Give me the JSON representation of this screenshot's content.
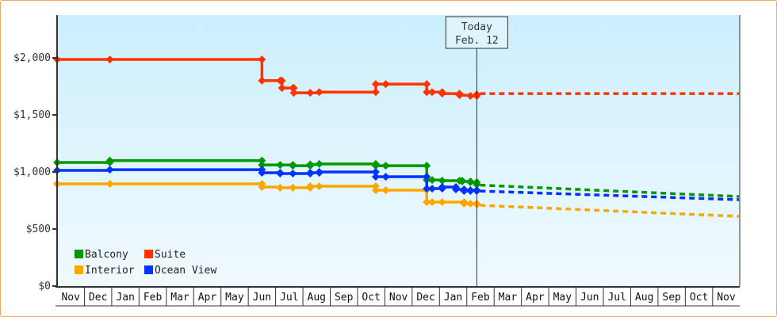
{
  "chart_data": {
    "type": "line",
    "title": "",
    "xlabel": "",
    "ylabel": "",
    "ylim": [
      0,
      2375
    ],
    "y_ticks": [
      "$0",
      "$500",
      "$1,000",
      "$1,500",
      "$2,000"
    ],
    "y_tick_values": [
      0,
      500,
      1000,
      1500,
      2000
    ],
    "x_ticks": [
      "Nov",
      "Dec",
      "Jan",
      "Feb",
      "Mar",
      "Apr",
      "May",
      "Jun",
      "Jul",
      "Aug",
      "Sep",
      "Oct",
      "Nov",
      "Dec",
      "Jan",
      "Feb",
      "Mar",
      "Apr",
      "May",
      "Jun",
      "Jul",
      "Aug",
      "Sep",
      "Oct",
      "Nov"
    ],
    "point_format": "[month tick index, day of month, price in $]",
    "today": {
      "label_line1": "Today",
      "label_line2": "Feb. 12",
      "month_index": 15,
      "day": 12
    },
    "legend_placement": "bottom-left",
    "series": [
      {
        "name": "Balcony",
        "color": "#009900",
        "points": [
          [
            0,
            1,
            1083
          ],
          [
            1,
            29,
            1100
          ],
          [
            7,
            16,
            1062
          ],
          [
            8,
            6,
            1062
          ],
          [
            8,
            20,
            1055
          ],
          [
            9,
            9,
            1066
          ],
          [
            9,
            19,
            1070
          ],
          [
            11,
            21,
            1055
          ],
          [
            12,
            2,
            1055
          ],
          [
            13,
            17,
            930
          ],
          [
            13,
            23,
            930
          ],
          [
            14,
            4,
            924
          ],
          [
            14,
            23,
            924
          ],
          [
            14,
            26,
            917
          ],
          [
            15,
            5,
            910
          ],
          [
            15,
            12,
            890
          ]
        ],
        "projection": [
          [
            15,
            12,
            885
          ],
          [
            24,
            30,
            785
          ]
        ]
      },
      {
        "name": "Suite",
        "color": "#ff3300",
        "points": [
          [
            0,
            1,
            1986
          ],
          [
            1,
            29,
            1986
          ],
          [
            7,
            16,
            1800
          ],
          [
            8,
            6,
            1800
          ],
          [
            8,
            8,
            1736
          ],
          [
            8,
            20,
            1736
          ],
          [
            8,
            21,
            1694
          ],
          [
            9,
            9,
            1694
          ],
          [
            9,
            19,
            1700
          ],
          [
            11,
            21,
            1770
          ],
          [
            12,
            2,
            1770
          ],
          [
            13,
            17,
            1700
          ],
          [
            13,
            23,
            1700
          ],
          [
            14,
            4,
            1687
          ],
          [
            14,
            23,
            1673
          ],
          [
            15,
            5,
            1667
          ],
          [
            15,
            12,
            1680
          ]
        ],
        "projection": [
          [
            15,
            12,
            1687
          ],
          [
            24,
            30,
            1687
          ]
        ]
      },
      {
        "name": "Interior",
        "color": "#ffa500",
        "points": [
          [
            0,
            1,
            896
          ],
          [
            1,
            29,
            896
          ],
          [
            7,
            16,
            868
          ],
          [
            8,
            6,
            862
          ],
          [
            8,
            20,
            862
          ],
          [
            9,
            9,
            875
          ],
          [
            9,
            19,
            875
          ],
          [
            11,
            21,
            840
          ],
          [
            12,
            2,
            840
          ],
          [
            13,
            17,
            736
          ],
          [
            13,
            23,
            736
          ],
          [
            14,
            4,
            736
          ],
          [
            14,
            28,
            722
          ],
          [
            15,
            5,
            722
          ],
          [
            15,
            12,
            715
          ]
        ],
        "projection": [
          [
            15,
            12,
            708
          ],
          [
            24,
            30,
            611
          ]
        ]
      },
      {
        "name": "Ocean View",
        "color": "#0033ff",
        "points": [
          [
            0,
            1,
            1014
          ],
          [
            1,
            29,
            1020
          ],
          [
            7,
            16,
            993
          ],
          [
            8,
            6,
            986
          ],
          [
            8,
            20,
            986
          ],
          [
            9,
            9,
            993
          ],
          [
            9,
            19,
            1000
          ],
          [
            11,
            21,
            958
          ],
          [
            12,
            2,
            958
          ],
          [
            13,
            17,
            854
          ],
          [
            13,
            23,
            854
          ],
          [
            14,
            4,
            868
          ],
          [
            14,
            19,
            847
          ],
          [
            14,
            28,
            833
          ],
          [
            15,
            5,
            840
          ],
          [
            15,
            12,
            833
          ]
        ],
        "projection": [
          [
            15,
            12,
            833
          ],
          [
            24,
            30,
            757
          ]
        ]
      }
    ]
  }
}
